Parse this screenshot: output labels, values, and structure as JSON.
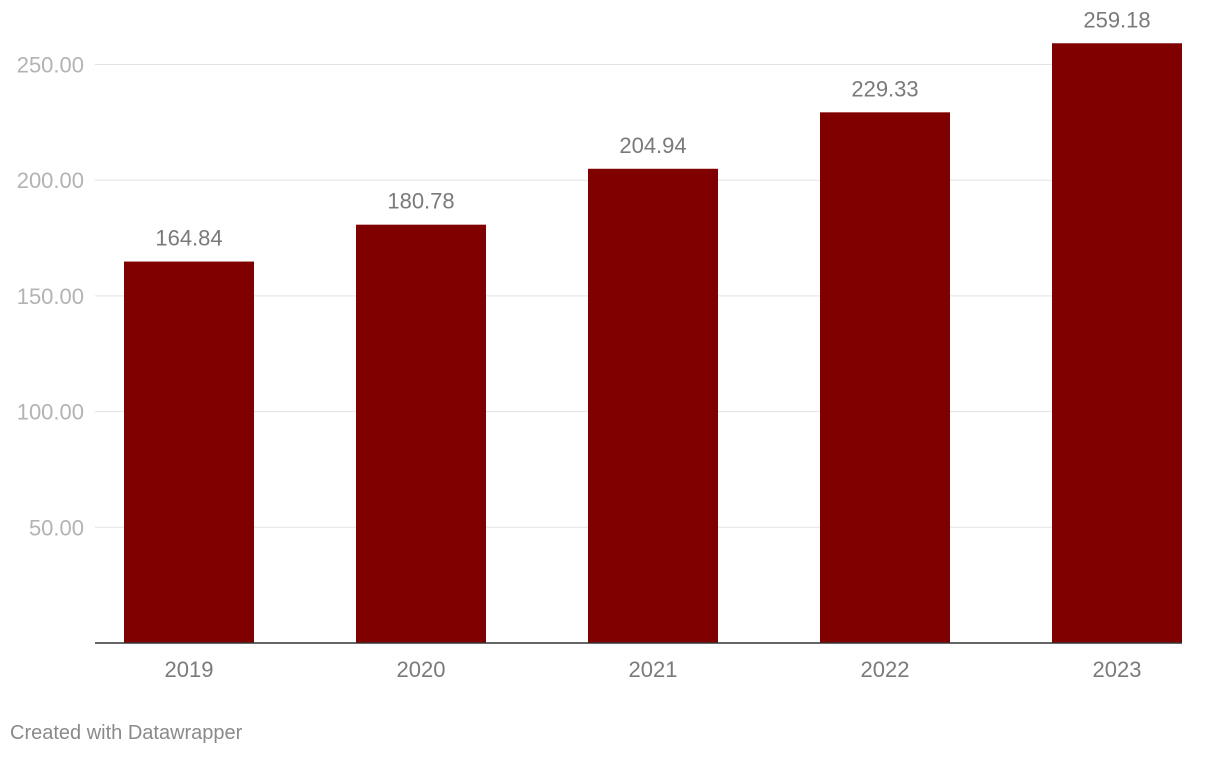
{
  "chart_data": {
    "type": "bar",
    "categories": [
      "2019",
      "2020",
      "2021",
      "2022",
      "2023"
    ],
    "values": [
      164.84,
      180.78,
      204.94,
      229.33,
      259.18
    ],
    "value_labels": [
      "164.84",
      "180.78",
      "204.94",
      "229.33",
      "259.18"
    ],
    "yticks": [
      50,
      100,
      150,
      200,
      250
    ],
    "ytick_labels": [
      "50.00",
      "100.00",
      "150.00",
      "200.00",
      "250.00"
    ],
    "ylim": [
      0,
      265
    ],
    "grid": true,
    "bar_color": "#800000",
    "title": "",
    "xlabel": "",
    "ylabel": ""
  },
  "footer": {
    "credit": "Created with Datawrapper"
  }
}
